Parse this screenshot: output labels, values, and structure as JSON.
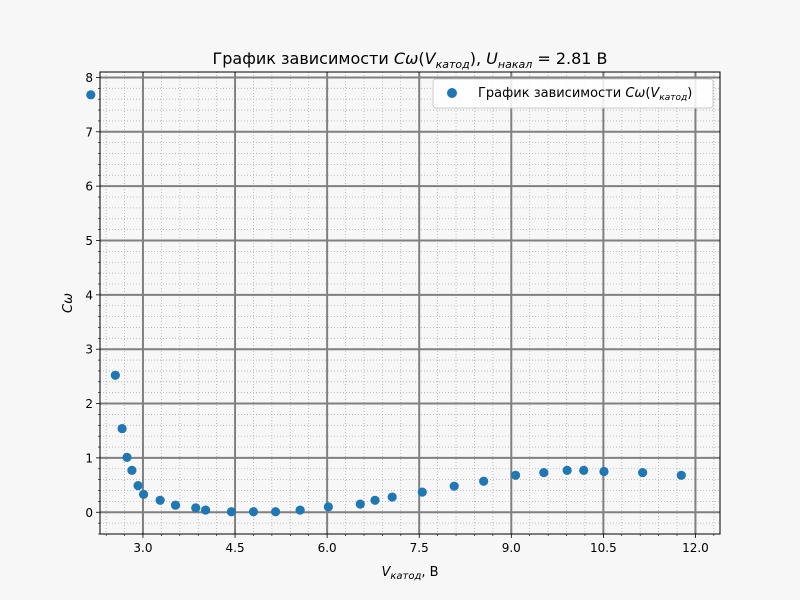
{
  "chart_data": {
    "type": "scatter",
    "title_parts": {
      "prefix": "График зависимости ",
      "C": "C",
      "omega": "ω",
      "V": "V",
      "V_sub": "катод",
      "U": "U",
      "U_sub": "накал",
      "suffix": " = 2.81 В"
    },
    "xlabel_parts": {
      "V": "V",
      "V_sub": "катод",
      "suffix": ", В"
    },
    "ylabel": "Cω",
    "legend_parts": {
      "prefix": "График зависимости ",
      "C": "C",
      "omega": "ω",
      "V": "V",
      "V_sub": "катод"
    },
    "legend_placement": "top-right",
    "xlim": [
      2.3,
      12.4
    ],
    "ylim": [
      -0.4,
      8.1
    ],
    "x_ticks": [
      3.0,
      4.5,
      6.0,
      7.5,
      9.0,
      10.5,
      12.0
    ],
    "x_tick_labels": [
      "3.0",
      "4.5",
      "6.0",
      "7.5",
      "9.0",
      "10.5",
      "12.0"
    ],
    "y_ticks": [
      0,
      1,
      2,
      3,
      4,
      5,
      6,
      7,
      8
    ],
    "y_tick_labels": [
      "0",
      "1",
      "2",
      "3",
      "4",
      "5",
      "6",
      "7",
      "8"
    ],
    "grid": true,
    "minor_grid": true,
    "marker_color": "#1f77b4",
    "x": [
      2.15,
      2.55,
      2.66,
      2.74,
      2.82,
      2.92,
      3.01,
      3.28,
      3.53,
      3.86,
      4.02,
      4.44,
      4.8,
      5.16,
      5.56,
      6.02,
      6.54,
      6.78,
      7.06,
      7.55,
      8.07,
      8.55,
      9.07,
      9.53,
      9.91,
      10.18,
      10.51,
      11.14,
      11.77
    ],
    "y": [
      7.68,
      2.52,
      1.54,
      1.01,
      0.77,
      0.49,
      0.33,
      0.22,
      0.13,
      0.08,
      0.04,
      0.01,
      0.01,
      0.01,
      0.04,
      0.1,
      0.15,
      0.22,
      0.28,
      0.37,
      0.48,
      0.57,
      0.68,
      0.73,
      0.77,
      0.77,
      0.75,
      0.73,
      0.68
    ]
  }
}
